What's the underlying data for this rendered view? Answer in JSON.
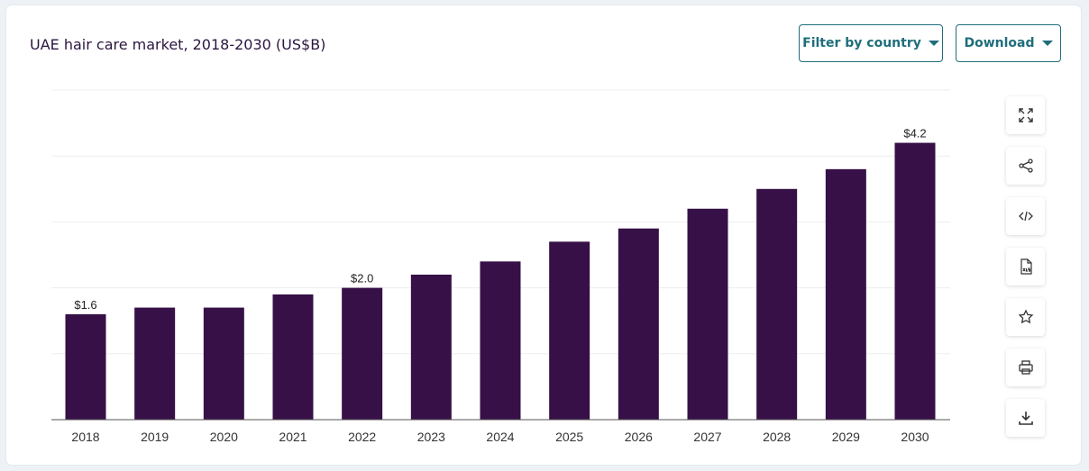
{
  "header": {
    "title": "UAE hair care market, 2018-2030 (US$B)",
    "filter_label": "Filter by country",
    "download_label": "Download"
  },
  "toolbar": {
    "icons": [
      "expand-icon",
      "share-icon",
      "embed-code-icon",
      "xls-file-icon",
      "star-icon",
      "print-icon",
      "download-icon"
    ]
  },
  "colors": {
    "bar": "#361046",
    "accent": "#1e6e7b",
    "title": "#2b1640"
  },
  "chart_data": {
    "type": "bar",
    "title": "UAE hair care market, 2018-2030 (US$B)",
    "categories": [
      "2018",
      "2019",
      "2020",
      "2021",
      "2022",
      "2023",
      "2024",
      "2025",
      "2026",
      "2027",
      "2028",
      "2029",
      "2030"
    ],
    "values": [
      1.6,
      1.7,
      1.7,
      1.9,
      2.0,
      2.2,
      2.4,
      2.7,
      2.9,
      3.2,
      3.5,
      3.8,
      4.2
    ],
    "data_labels": [
      {
        "index": 0,
        "text": "$1.6"
      },
      {
        "index": 4,
        "text": "$2.0"
      },
      {
        "index": 12,
        "text": "$4.2"
      }
    ],
    "xlabel": "",
    "ylabel": "",
    "ylim": [
      0,
      5
    ],
    "grid": true,
    "legend": "none"
  }
}
